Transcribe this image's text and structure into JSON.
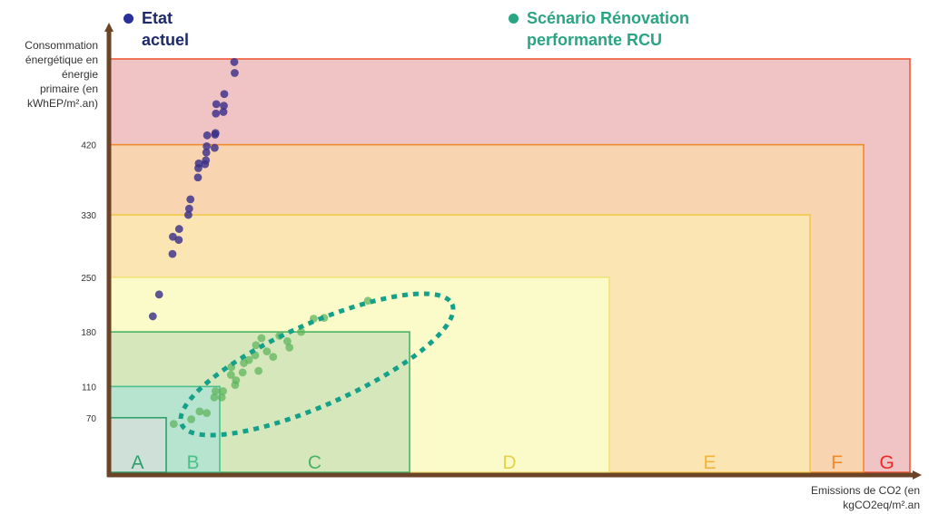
{
  "chart_data": {
    "type": "scatter",
    "ylabel": "Consommation énergétique en énergie primaire (en kWhEP/m².an)",
    "xlabel": "Emissions de CO2 (en kgCO2eq/m².an",
    "yticks": [
      70,
      110,
      180,
      250,
      330,
      420
    ],
    "ylim": [
      0,
      530
    ],
    "classes": [
      {
        "label": "A",
        "max_energy": 70,
        "fill": "#cfe0d8",
        "stroke": "#2e9e6a",
        "text_color": "#2e9e6a"
      },
      {
        "label": "B",
        "max_energy": 110,
        "fill": "#b6e4cf",
        "stroke": "#4cc08a",
        "text_color": "#4cc08a"
      },
      {
        "label": "C",
        "max_energy": 180,
        "fill": "#d6e8bb",
        "stroke": "#49b266",
        "text_color": "#49b266"
      },
      {
        "label": "D",
        "max_energy": 250,
        "fill": "#fbfbc9",
        "stroke": "#f0e27a",
        "text_color": "#e4d24a"
      },
      {
        "label": "E",
        "max_energy": 330,
        "fill": "#fbe6b3",
        "stroke": "#f2c84b",
        "text_color": "#f2b43a"
      },
      {
        "label": "F",
        "max_energy": 420,
        "fill": "#f8d5b0",
        "stroke": "#f08a2a",
        "text_color": "#f08a2a"
      },
      {
        "label": "G",
        "max_energy": 530,
        "fill": "#f0c4c4",
        "stroke": "#ef5a3a",
        "text_color": "#ee2a2a"
      }
    ],
    "series": [
      {
        "name": "Etat actuel",
        "color": "#3a2f8a",
        "points": [
          [
            1.05,
            200
          ],
          [
            1.2,
            228
          ],
          [
            1.52,
            280
          ],
          [
            1.53,
            302
          ],
          [
            1.67,
            298
          ],
          [
            1.68,
            312
          ],
          [
            1.9,
            330
          ],
          [
            1.92,
            338
          ],
          [
            1.95,
            350
          ],
          [
            2.13,
            378
          ],
          [
            2.14,
            390
          ],
          [
            2.15,
            396
          ],
          [
            2.3,
            395
          ],
          [
            2.32,
            400
          ],
          [
            2.33,
            410
          ],
          [
            2.34,
            418
          ],
          [
            2.35,
            432
          ],
          [
            2.53,
            416
          ],
          [
            2.54,
            433
          ],
          [
            2.55,
            435
          ],
          [
            2.56,
            460
          ],
          [
            2.57,
            472
          ],
          [
            2.74,
            462
          ],
          [
            2.75,
            470
          ],
          [
            2.76,
            485
          ],
          [
            3.0,
            526
          ],
          [
            3.01,
            512
          ]
        ]
      },
      {
        "name": "Scénario Rénovation performante RCU",
        "color": "#5cb35a",
        "points": [
          [
            1.55,
            62
          ],
          [
            1.97,
            68
          ],
          [
            2.17,
            78
          ],
          [
            2.34,
            76
          ],
          [
            2.52,
            96
          ],
          [
            2.55,
            104
          ],
          [
            2.7,
            96
          ],
          [
            2.73,
            104
          ],
          [
            2.92,
            125
          ],
          [
            2.93,
            135
          ],
          [
            3.02,
            112
          ],
          [
            3.04,
            118
          ],
          [
            3.2,
            128
          ],
          [
            3.23,
            140
          ],
          [
            3.35,
            144
          ],
          [
            3.5,
            150
          ],
          [
            3.52,
            163
          ],
          [
            3.58,
            130
          ],
          [
            3.65,
            172
          ],
          [
            3.78,
            155
          ],
          [
            3.93,
            148
          ],
          [
            4.08,
            175
          ],
          [
            4.27,
            168
          ],
          [
            4.32,
            160
          ],
          [
            4.6,
            180
          ],
          [
            4.9,
            197
          ],
          [
            5.15,
            198
          ],
          [
            6.2,
            220
          ]
        ]
      }
    ]
  },
  "legend": {
    "actual_label_line1": "Etat",
    "actual_label_line2": "actuel",
    "reno_label_line1": "Scénario Rénovation",
    "reno_label_line2": "performante RCU"
  },
  "axes": {
    "y_label_line1": "Consommation",
    "y_label_line2": "énergétique en",
    "y_label_line3": "énergie",
    "y_label_line4": "primaire (en",
    "y_label_line5": "kWhEP/m².an)",
    "x_label_line1": "Emissions de CO2 (en",
    "x_label_line2": "kgCO2eq/m².an"
  }
}
